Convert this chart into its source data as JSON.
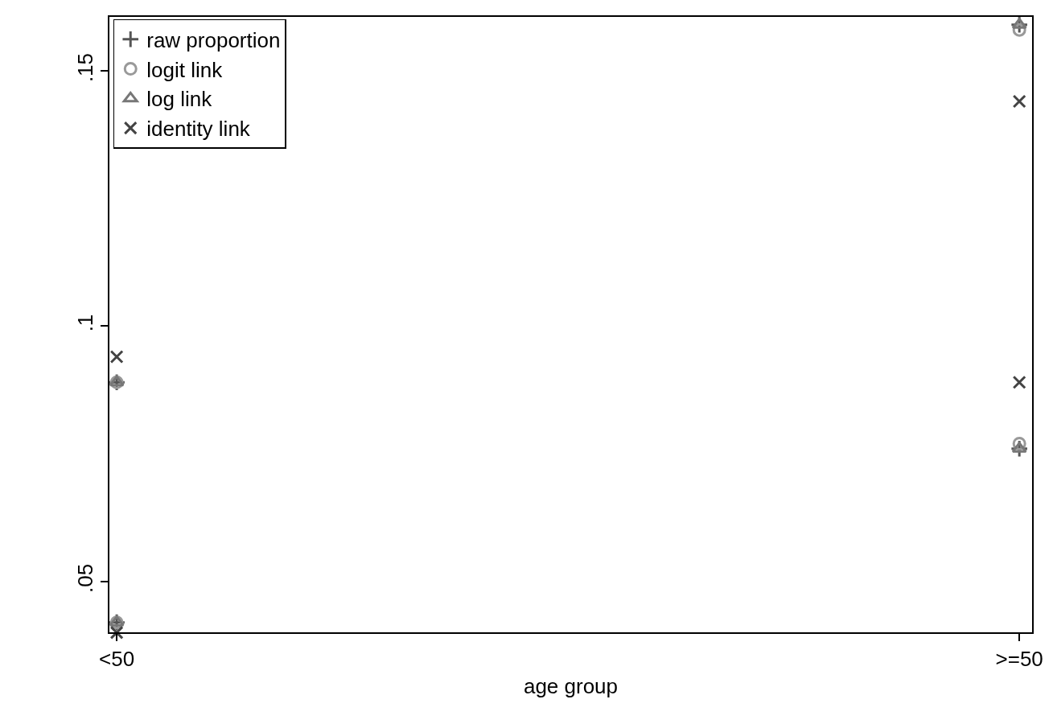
{
  "chart_data": {
    "type": "scatter",
    "xlabel": "age group",
    "categories": [
      "<50",
      ">=50"
    ],
    "ylim": [
      0.0399,
      0.1607
    ],
    "yticks": [
      {
        "value": 0.05,
        "label": ".05"
      },
      {
        "value": 0.1,
        "label": ".1"
      },
      {
        "value": 0.15,
        "label": ".15"
      }
    ],
    "grid": false,
    "legend": "top left",
    "series": [
      {
        "name": "raw proportion",
        "color": "#555555",
        "marker": "cross",
        "x": [
          "<50",
          "<50",
          ">=50",
          ">=50"
        ],
        "values": [
          0.089,
          0.042,
          0.159,
          0.076
        ]
      },
      {
        "name": "logit link",
        "color": "#999999",
        "marker": "circle",
        "x": [
          "<50",
          "<50",
          ">=50",
          ">=50"
        ],
        "values": [
          0.089,
          0.042,
          0.158,
          0.077
        ]
      },
      {
        "name": "log link",
        "color": "#777777",
        "marker": "triangle",
        "x": [
          "<50",
          "<50",
          ">=50",
          ">=50"
        ],
        "values": [
          0.089,
          0.042,
          0.159,
          0.076
        ]
      },
      {
        "name": "identity link",
        "color": "#444444",
        "marker": "x",
        "x": [
          "<50",
          "<50",
          ">=50",
          ">=50"
        ],
        "values": [
          0.094,
          0.04,
          0.144,
          0.089
        ]
      }
    ]
  }
}
